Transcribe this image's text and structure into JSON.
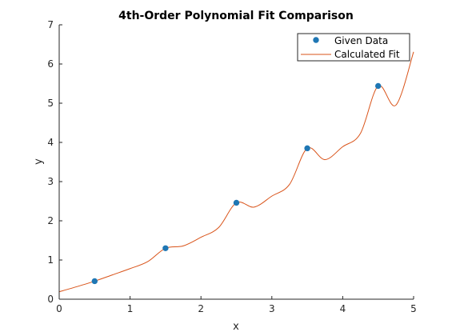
{
  "chart_data": {
    "type": "line",
    "title": "4th-Order Polynomial Fit Comparison",
    "xlabel": "x",
    "ylabel": "y",
    "xlim": [
      0,
      5
    ],
    "ylim": [
      0,
      7
    ],
    "xticks": [
      "0",
      "1",
      "2",
      "3",
      "4",
      "5"
    ],
    "yticks": [
      "0",
      "1",
      "2",
      "3",
      "4",
      "5",
      "6",
      "7"
    ],
    "grid": false,
    "legend_position": "top-right",
    "series": [
      {
        "name": "Given Data",
        "kind": "markers",
        "color": "#1f77b4",
        "x": [
          0.5,
          1.5,
          2.5,
          3.5,
          4.5
        ],
        "y": [
          0.46,
          1.3,
          2.46,
          3.85,
          5.44
        ]
      },
      {
        "name": "Calculated Fit",
        "kind": "line",
        "color": "#d95319",
        "x": [
          0,
          0.25,
          0.5,
          0.75,
          1,
          1.25,
          1.5,
          1.75,
          2,
          2.25,
          2.5,
          2.75,
          3,
          3.25,
          3.5,
          3.75,
          4,
          4.25,
          4.5,
          4.75,
          5
        ],
        "y": [
          0.19,
          0.32,
          0.46,
          0.62,
          0.78,
          0.96,
          1.3,
          1.36,
          1.58,
          1.83,
          2.46,
          2.35,
          2.63,
          2.93,
          3.85,
          3.56,
          3.89,
          4.23,
          5.44,
          4.95,
          6.31
        ]
      }
    ]
  }
}
